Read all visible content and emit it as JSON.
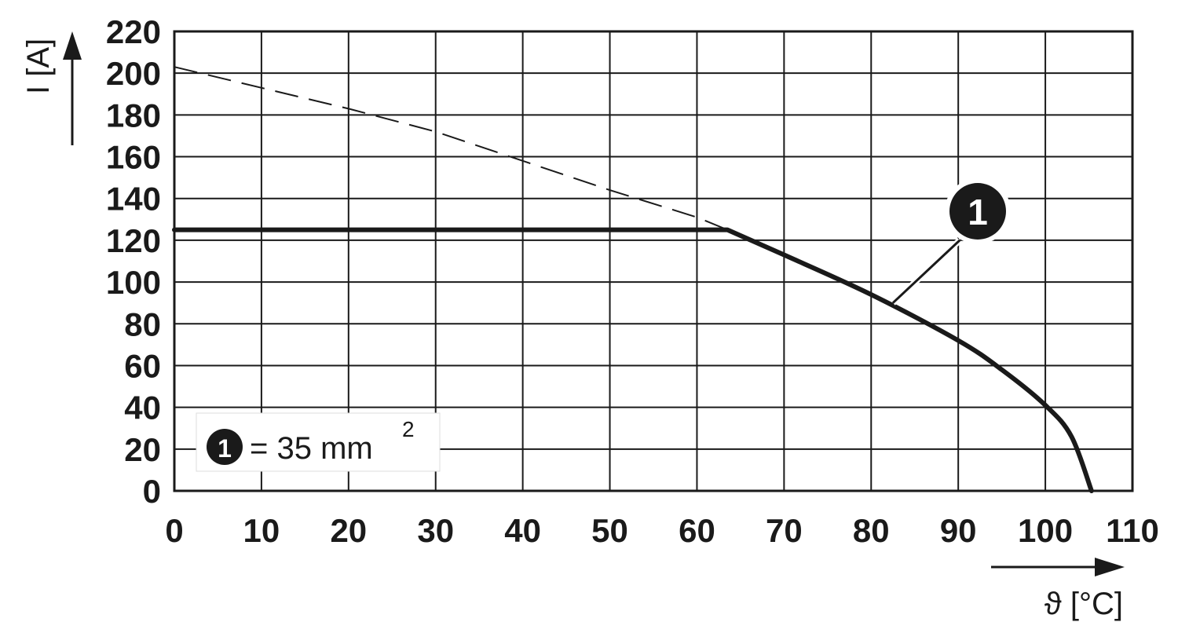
{
  "chart_data": {
    "type": "line",
    "ylabel": "I [A]",
    "xlabel": "ϑ [°C]",
    "xlim": [
      0,
      110
    ],
    "ylim": [
      0,
      220
    ],
    "x_ticks": [
      "0",
      "10",
      "20",
      "30",
      "40",
      "50",
      "60",
      "70",
      "80",
      "90",
      "100",
      "110"
    ],
    "y_ticks": [
      "0",
      "20",
      "40",
      "60",
      "80",
      "100",
      "120",
      "140",
      "160",
      "180",
      "200",
      "220"
    ],
    "grid": true,
    "series": [
      {
        "marker": "1",
        "style": "solid",
        "x": [
          0,
          63.5,
          70,
          80,
          90,
          95,
          100,
          103,
          105.3
        ],
        "y": [
          125,
          125,
          113,
          94,
          72,
          58,
          41,
          26,
          0
        ]
      },
      {
        "style": "dashed",
        "x": [
          0,
          10,
          20,
          30,
          40,
          50,
          60,
          63.5
        ],
        "y": [
          203,
          193,
          183,
          172,
          158,
          144,
          131,
          125
        ]
      }
    ],
    "callout": {
      "label": "1",
      "x": 82.5,
      "y": 90
    },
    "legend": {
      "marker": "1",
      "text": "= 35 mm",
      "superscript": "2",
      "placement": "bottom-left"
    }
  },
  "colors": {
    "line": "#1a1a1a",
    "grid": "#1a1a1a",
    "background": "#ffffff"
  }
}
